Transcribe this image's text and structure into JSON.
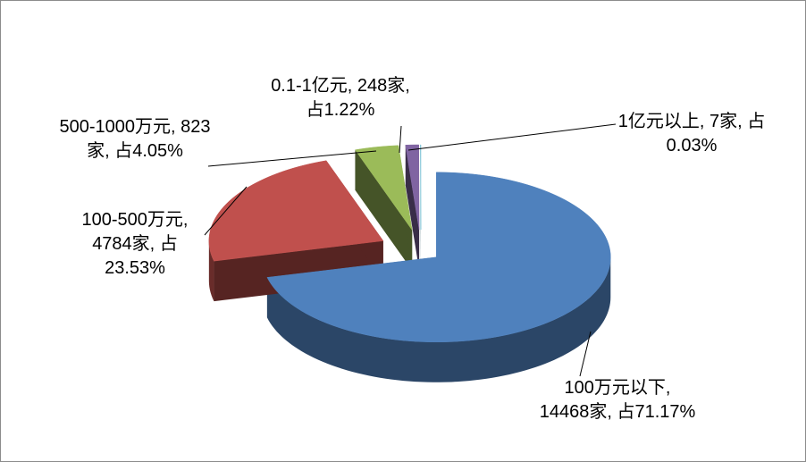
{
  "chart_data": {
    "type": "pie3d",
    "values": [
      71.17,
      23.53,
      4.05,
      1.22,
      0.03
    ],
    "value_labels": [
      "100万元以下, 14468家, 占71.17%",
      "100-500万元, 4784家, 占23.53%",
      "500-1000万元, 823家, 占4.05%",
      "0.1-1亿元, 248家, 占1.22%",
      "1亿元以上, 7家, 占0.03%"
    ],
    "colors": [
      "#4f81bd",
      "#c0504d",
      "#9bbb59",
      "#8064a2",
      "#4bacc6"
    ]
  }
}
